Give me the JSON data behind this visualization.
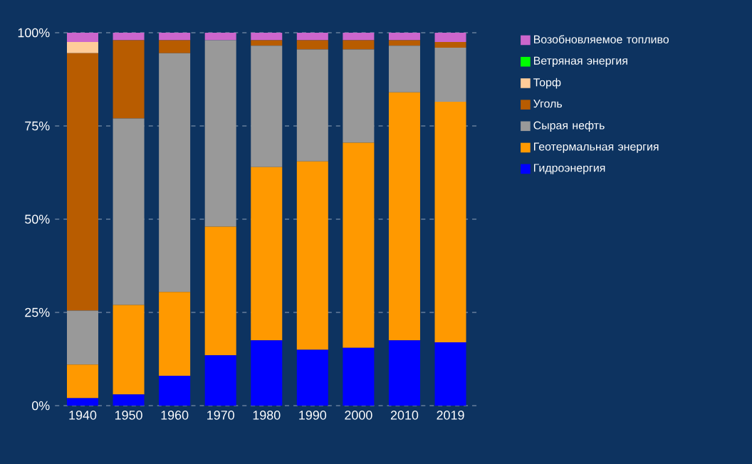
{
  "chart_data": {
    "type": "bar",
    "stacked": true,
    "categories": [
      "1940",
      "1950",
      "1960",
      "1970",
      "1980",
      "1990",
      "2000",
      "2010",
      "2019"
    ],
    "series": [
      {
        "name": "Гидроэнергия",
        "color": "#0000ff",
        "values": [
          2,
          3,
          8,
          13.5,
          17.5,
          15,
          15.5,
          17.5,
          17
        ]
      },
      {
        "name": "Геотермальная энергия",
        "color": "#ff9900",
        "values": [
          9,
          24,
          22.5,
          34.5,
          46.5,
          50.5,
          55,
          66.5,
          64.5
        ]
      },
      {
        "name": "Сырая нефть",
        "color": "#999999",
        "values": [
          14.5,
          50,
          64,
          50,
          32.5,
          30,
          25,
          12.5,
          14.5
        ]
      },
      {
        "name": "Уголь",
        "color": "#b85c00",
        "values": [
          69,
          21,
          3.5,
          0,
          1.5,
          2.5,
          2.5,
          1.5,
          1.5
        ]
      },
      {
        "name": "Торф",
        "color": "#ffcc99",
        "values": [
          3,
          0,
          0,
          0,
          0,
          0,
          0,
          0,
          0
        ]
      },
      {
        "name": "Ветряная энергия",
        "color": "#00ff00",
        "values": [
          0,
          0,
          0,
          0,
          0,
          0,
          0,
          0,
          0
        ]
      },
      {
        "name": "Возобновляемое топливо",
        "color": "#cc66cc",
        "values": [
          2.5,
          2,
          2,
          2,
          2,
          2,
          2,
          2,
          2.5
        ]
      }
    ],
    "ylim": [
      0,
      100
    ],
    "yticks": [
      {
        "value": 0,
        "label": "0%"
      },
      {
        "value": 25,
        "label": "25%"
      },
      {
        "value": 50,
        "label": "50%"
      },
      {
        "value": 75,
        "label": "75%"
      },
      {
        "value": 100,
        "label": "100%"
      }
    ],
    "grid": "y",
    "legend": "right"
  }
}
